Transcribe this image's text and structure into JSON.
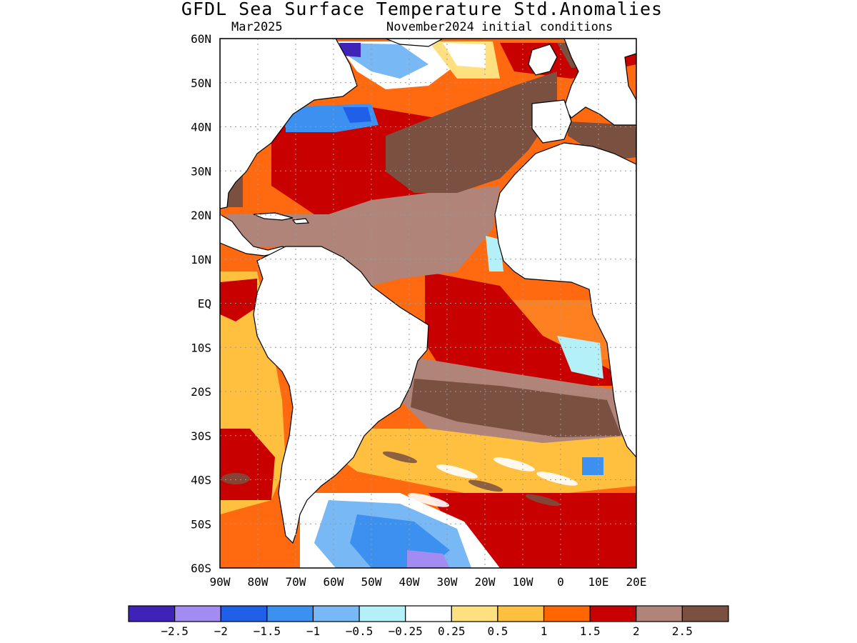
{
  "header": {
    "title": "GFDL Sea Surface Temperature Std.Anomalies",
    "valid_month": "Mar2025",
    "initial_conditions": "November2024 initial conditions"
  },
  "map": {
    "lat_range": [
      -60,
      60
    ],
    "lon_range": [
      -90,
      20
    ],
    "lat_labels": [
      "60N",
      "50N",
      "40N",
      "30N",
      "20N",
      "10N",
      "EQ",
      "10S",
      "20S",
      "30S",
      "40S",
      "50S",
      "60S"
    ],
    "lon_labels": [
      "90W",
      "80W",
      "70W",
      "60W",
      "50W",
      "40W",
      "30W",
      "20W",
      "10W",
      "0",
      "10E",
      "20E"
    ],
    "grid": "dotted"
  },
  "colorbar": {
    "colors": [
      "#3f22b8",
      "#a28cf2",
      "#2060e8",
      "#3c90f0",
      "#78b8f4",
      "#b4f0f8",
      "#ffffff",
      "#ffe080",
      "#ffc040",
      "#ff6600",
      "#c80000",
      "#b08478",
      "#7a5040"
    ],
    "tick_labels": [
      "−2.5",
      "−2",
      "−1.5",
      "−1",
      "−0.5",
      "−0.25",
      "0.25",
      "0.5",
      "1",
      "1.5",
      "2",
      "2.5"
    ]
  },
  "colors": {
    "land": "#ffffff",
    "ocean_base": "#ff6a10",
    "coastline": "#000000"
  }
}
